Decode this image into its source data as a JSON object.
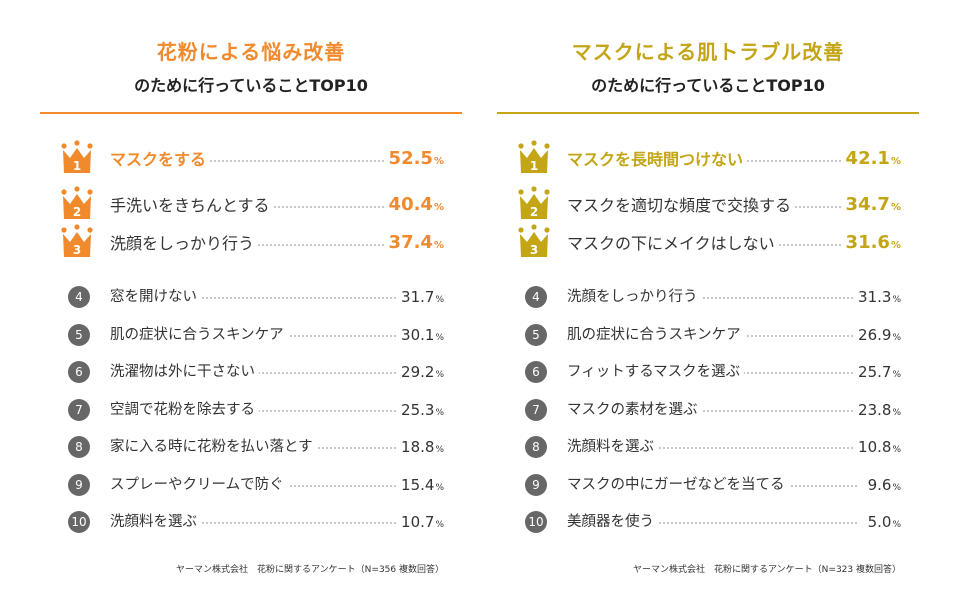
{
  "chart_data": [
    {
      "type": "table",
      "title": "花粉による悩み改善",
      "subtitle": "のために行っていることTOP10",
      "accent_color": "#f08a2c",
      "unit": "%",
      "items": [
        {
          "rank": "1",
          "label": "マスクをする",
          "value": "52.5"
        },
        {
          "rank": "2",
          "label": "手洗いをきちんとする",
          "value": "40.4"
        },
        {
          "rank": "3",
          "label": "洗顔をしっかり行う",
          "value": "37.4"
        },
        {
          "rank": "4",
          "label": "窓を開けない",
          "value": "31.7"
        },
        {
          "rank": "5",
          "label": "肌の症状に合うスキンケア",
          "value": "30.1"
        },
        {
          "rank": "6",
          "label": "洗濯物は外に干さない",
          "value": "29.2"
        },
        {
          "rank": "7",
          "label": "空調で花粉を除去する",
          "value": "25.3"
        },
        {
          "rank": "8",
          "label": "家に入る時に花粉を払い落とす",
          "value": "18.8"
        },
        {
          "rank": "9",
          "label": "スプレーやクリームで防ぐ",
          "value": "15.4"
        },
        {
          "rank": "10",
          "label": "洗顔料を選ぶ",
          "value": "10.7"
        }
      ],
      "source": "ヤーマン株式会社　花粉に関するアンケート（N=356 複数回答）"
    },
    {
      "type": "table",
      "title": "マスクによる肌トラブル改善",
      "subtitle": "のために行っていることTOP10",
      "accent_color": "#c3a515",
      "unit": "%",
      "items": [
        {
          "rank": "1",
          "label": "マスクを長時間つけない",
          "value": "42.1"
        },
        {
          "rank": "2",
          "label": "マスクを適切な頻度で交換する",
          "value": "34.7"
        },
        {
          "rank": "3",
          "label": "マスクの下にメイクはしない",
          "value": "31.6"
        },
        {
          "rank": "4",
          "label": "洗顔をしっかり行う",
          "value": "31.3"
        },
        {
          "rank": "5",
          "label": "肌の症状に合うスキンケア",
          "value": "26.9"
        },
        {
          "rank": "6",
          "label": "フィットするマスクを選ぶ",
          "value": "25.7"
        },
        {
          "rank": "7",
          "label": "マスクの素材を選ぶ",
          "value": "23.8"
        },
        {
          "rank": "8",
          "label": "洗顔料を選ぶ",
          "value": "10.8"
        },
        {
          "rank": "9",
          "label": "マスクの中にガーゼなどを当てる",
          "value": "9.6"
        },
        {
          "rank": "10",
          "label": "美顔器を使う",
          "value": "5.0"
        }
      ],
      "source": "ヤーマン株式会社　花粉に関するアンケート（N=323 複数回答）"
    }
  ]
}
